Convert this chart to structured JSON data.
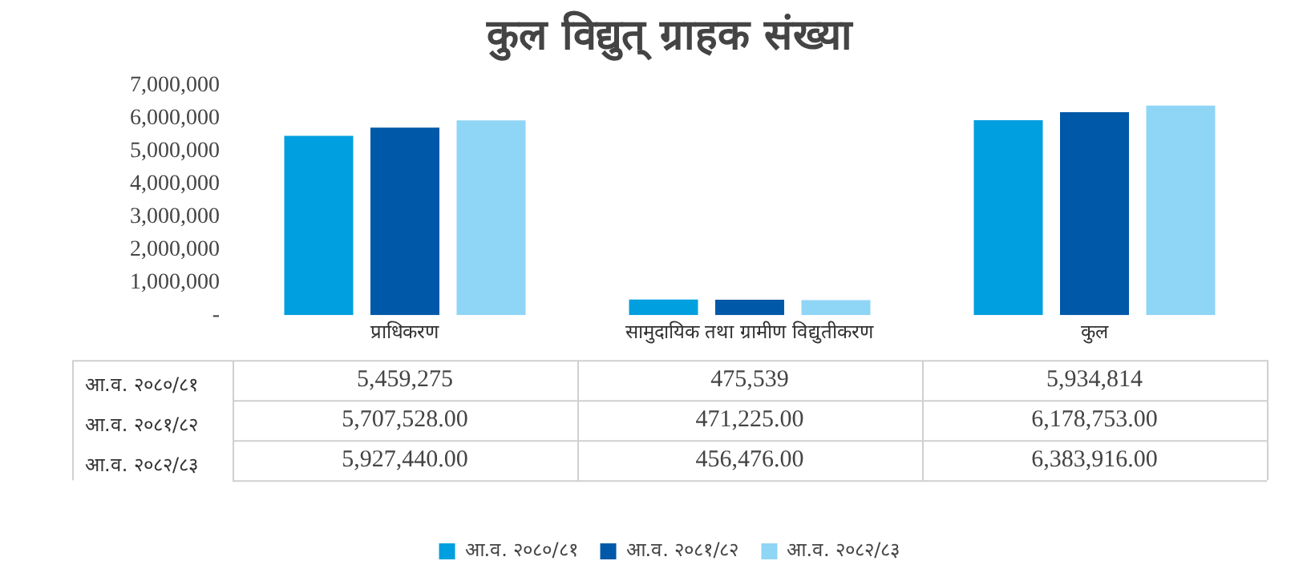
{
  "chart_data": {
    "type": "bar",
    "title": "कुल विद्युत् ग्राहक संख्या",
    "categories": [
      "प्राधिकरण",
      "सामुदायिक तथा ग्रामीण विद्युतीकरण",
      "कुल"
    ],
    "series": [
      {
        "name": "आ.व. २०८०/८१",
        "color": "#009fdf",
        "values": [
          5459275,
          475539,
          5934814
        ],
        "value_labels": [
          "5,459,275",
          "475,539",
          "5,934,814"
        ]
      },
      {
        "name": "आ.व. २०८१/८२",
        "color": "#0058a8",
        "values": [
          5707528,
          471225,
          6178753
        ],
        "value_labels": [
          "5,707,528.00",
          "471,225.00",
          "6,178,753.00"
        ]
      },
      {
        "name": "आ.व. २०८२/८३",
        "color": "#8fd5f5",
        "values": [
          5927440,
          456476,
          6383916
        ],
        "value_labels": [
          "5,927,440.00",
          "456,476.00",
          "6,383,916.00"
        ]
      }
    ],
    "ylim": [
      0,
      7000000
    ],
    "yticks": [
      {
        "value": 0,
        "label": "-"
      },
      {
        "value": 1000000,
        "label": "1,000,000"
      },
      {
        "value": 2000000,
        "label": "2,000,000"
      },
      {
        "value": 3000000,
        "label": "3,000,000"
      },
      {
        "value": 4000000,
        "label": "4,000,000"
      },
      {
        "value": 5000000,
        "label": "5,000,000"
      },
      {
        "value": 6000000,
        "label": "6,000,000"
      },
      {
        "value": 7000000,
        "label": "7,000,000"
      }
    ],
    "legend": "bottom"
  }
}
